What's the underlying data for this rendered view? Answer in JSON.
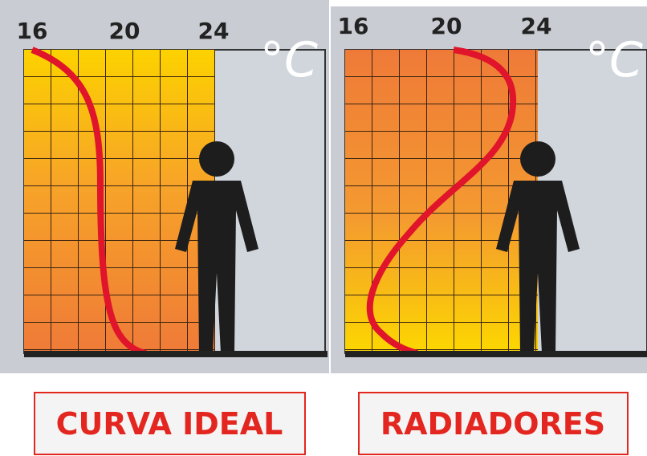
{
  "panels": [
    {
      "ticks": [
        "16",
        "20",
        "24"
      ],
      "unit": "°C",
      "label": "CURVA IDEAL"
    },
    {
      "ticks": [
        "16",
        "20",
        "24"
      ],
      "unit": "°C",
      "label": "RADIADORES"
    }
  ]
}
